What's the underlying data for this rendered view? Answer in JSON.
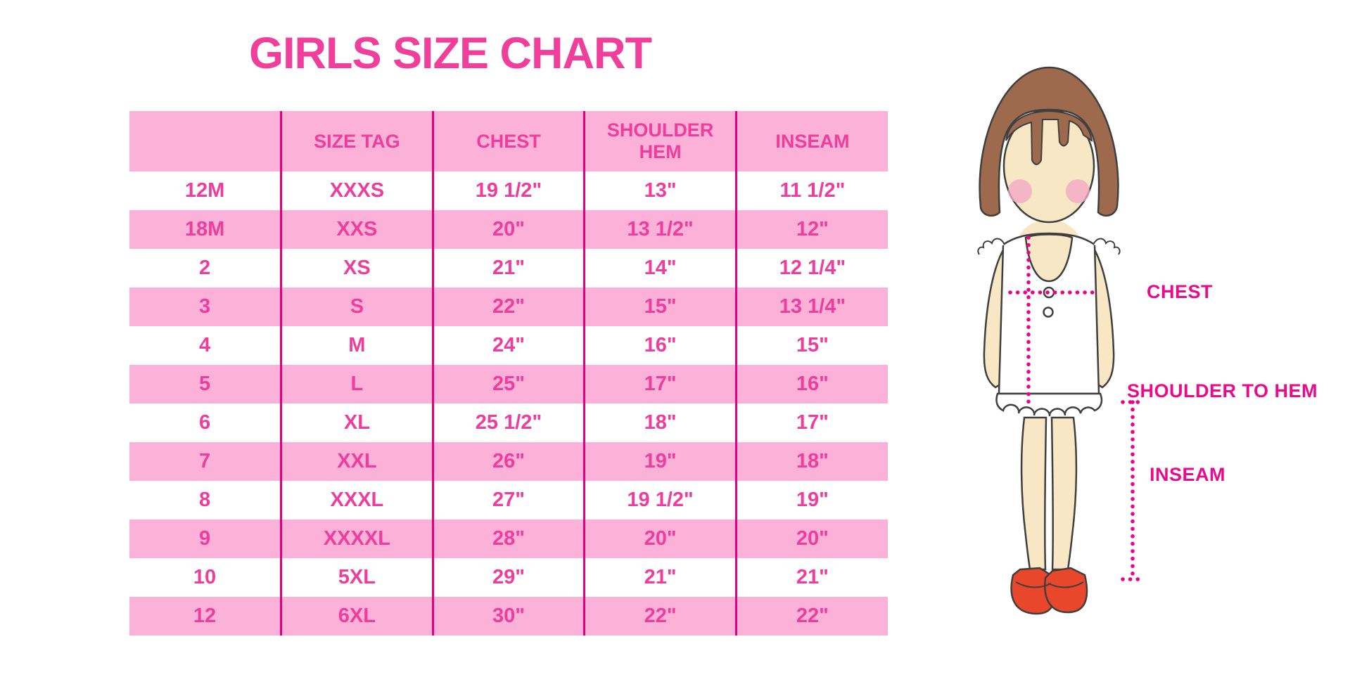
{
  "title": "GIRLS SIZE CHART",
  "colors": {
    "title_pink": "#f03f9b",
    "row_pink": "#fbb1d8",
    "table_text_pink": "#ee3d9c",
    "divider_magenta": "#e3007f",
    "dotted_line_magenta": "#ec008c",
    "label_magenta": "#ea0b8d",
    "hair_brown": "#9e6a4e",
    "skin": "#f8e7c5",
    "blush": "#f2a9c5",
    "shoe_red": "#e8472b"
  },
  "chart_data": {
    "type": "table",
    "title": "GIRLS SIZE CHART",
    "columns": [
      "",
      "SIZE TAG",
      "CHEST",
      "SHOULDER HEM",
      "INSEAM"
    ],
    "rows": [
      [
        "12M",
        "XXXS",
        "19 1/2\"",
        "13\"",
        "11 1/2\""
      ],
      [
        "18M",
        "XXS",
        "20\"",
        "13 1/2\"",
        "12\""
      ],
      [
        "2",
        "XS",
        "21\"",
        "14\"",
        "12 1/4\""
      ],
      [
        "3",
        "S",
        "22\"",
        "15\"",
        "13 1/4\""
      ],
      [
        "4",
        "M",
        "24\"",
        "16\"",
        "15\""
      ],
      [
        "5",
        "L",
        "25\"",
        "17\"",
        "16\""
      ],
      [
        "6",
        "XL",
        "25 1/2\"",
        "18\"",
        "17\""
      ],
      [
        "7",
        "XXL",
        "26\"",
        "19\"",
        "18\""
      ],
      [
        "8",
        "XXXL",
        "27\"",
        "19 1/2\"",
        "19\""
      ],
      [
        "9",
        "XXXXL",
        "28\"",
        "20\"",
        "20\""
      ],
      [
        "10",
        "5XL",
        "29\"",
        "21\"",
        "21\""
      ],
      [
        "12",
        "6XL",
        "30\"",
        "22\"",
        "22\""
      ]
    ],
    "layout": {
      "striping": "white/pink alternating rows",
      "grid": "vertical magenta dividers only"
    }
  },
  "diagram": {
    "labels": {
      "chest": "CHEST",
      "shoulder_to_hem": "SHOULDER TO HEM",
      "inseam": "INSEAM"
    }
  }
}
